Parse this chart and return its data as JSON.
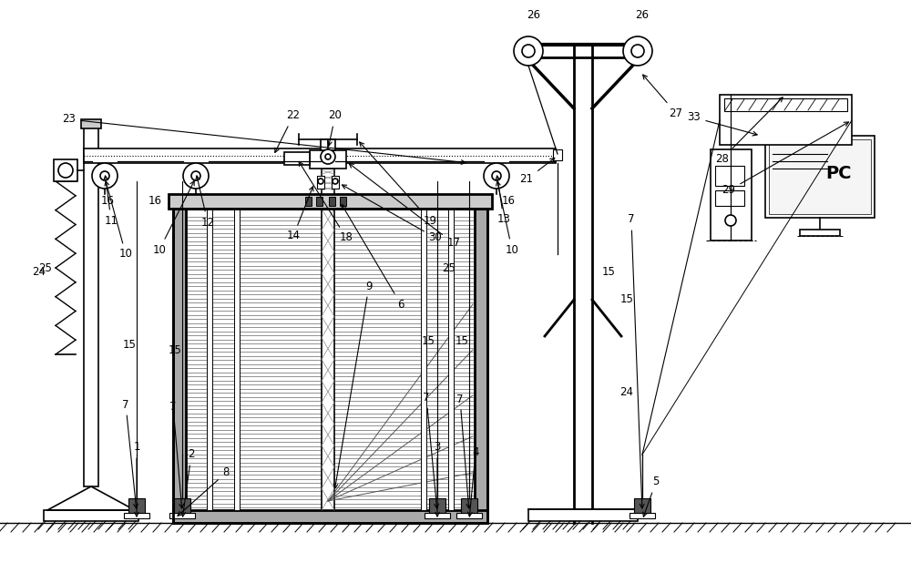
{
  "bg": "#ffffff",
  "lc": "#000000",
  "gray_wall": "#aaaaaa",
  "gray_fill": "#888888",
  "dark_fill": "#444444",
  "light_gray": "#dddddd",
  "med_gray": "#999999"
}
